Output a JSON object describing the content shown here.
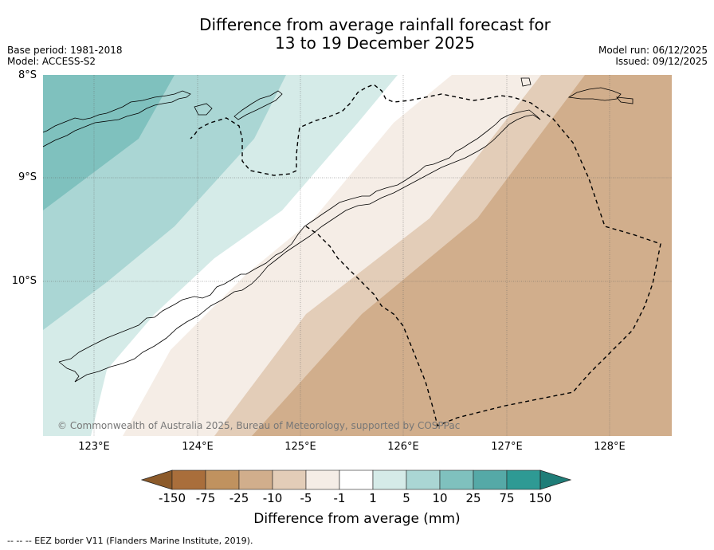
{
  "title_line1": "Difference from average rainfall forecast for",
  "title_line2": "13 to 19 December 2025",
  "meta_left": [
    "Base period: 1981-2018",
    "Model: ACCESS-S2"
  ],
  "meta_right": [
    "Model run: 06/12/2025",
    "Issued: 09/12/2025"
  ],
  "lat_labels": [
    "8°S",
    "9°S",
    "10°S"
  ],
  "lon_labels": [
    "123°E",
    "124°E",
    "125°E",
    "126°E",
    "127°E",
    "128°E"
  ],
  "copyright": "© Commonwealth of Australia 2025, Bureau of Meteorology, supported by COSPPac",
  "colorbar": {
    "title": "Difference from average (mm)",
    "labels": [
      "-150",
      "-75",
      "-25",
      "-10",
      "-5",
      "-1",
      "1",
      "5",
      "10",
      "25",
      "75",
      "150"
    ],
    "colors": [
      "#a96e3b",
      "#c0925f",
      "#d1ae8c",
      "#e3cdb8",
      "#f5ede6",
      "#ffffff",
      "#d5ebe8",
      "#aad6d4",
      "#7fc1be",
      "#55a9a7",
      "#2e9a94"
    ],
    "low_extend_color": "#8c5a2a",
    "high_extend_color": "#1f7d78"
  },
  "footnote": "--  --  -- EEZ border V11 (Flanders Marine Institute, 2019)."
}
